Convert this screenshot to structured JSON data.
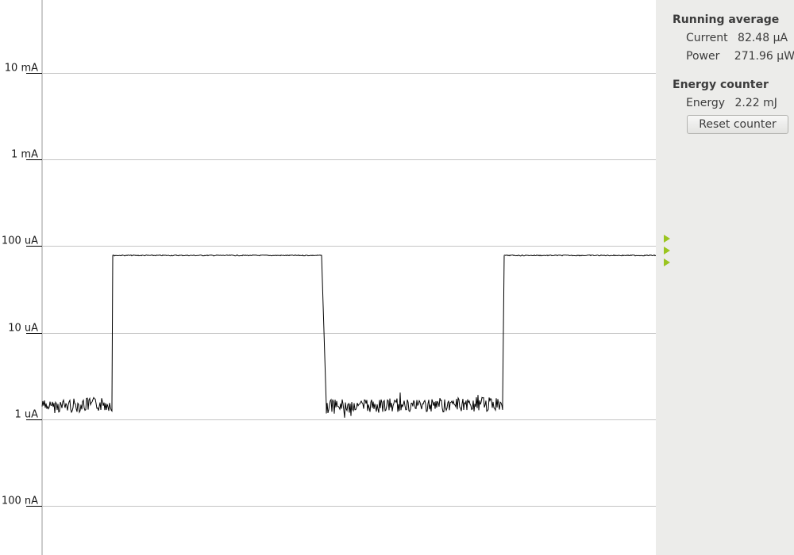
{
  "chart_data": {
    "type": "line",
    "scale": "log",
    "y_ticks": [
      {
        "label": "10 mA",
        "value": 0.01
      },
      {
        "label": "1 mA",
        "value": 0.001
      },
      {
        "label": "100 uA",
        "value": 0.0001
      },
      {
        "label": "10 uA",
        "value": 1e-05
      },
      {
        "label": "1 uA",
        "value": 1e-06
      },
      {
        "label": "100 nA",
        "value": 1e-07
      }
    ],
    "ylim_A": [
      4e-08,
      0.02
    ],
    "grid": true,
    "series": [
      {
        "values_A": [
          [
            0,
            1.4e-06
          ],
          [
            88,
            1.5e-06
          ],
          [
            89,
            7.8e-05
          ],
          [
            352,
            7.8e-05
          ],
          [
            358,
            1.4e-06
          ],
          [
            580,
            1.5e-06
          ],
          [
            582,
            7.8e-05
          ],
          [
            773,
            7.8e-05
          ]
        ]
      }
    ]
  },
  "side_panel": {
    "running_average": {
      "heading": "Running average",
      "current_label": "Current",
      "current_value": "82.48 µA",
      "power_label": "Power",
      "power_value": "271.96 µW"
    },
    "energy_counter": {
      "heading": "Energy counter",
      "energy_label": "Energy",
      "energy_value": "2.22 mJ",
      "reset_label": "Reset counter"
    }
  },
  "colors": {
    "marker": "#9bc520",
    "panel_bg": "#ececea"
  }
}
